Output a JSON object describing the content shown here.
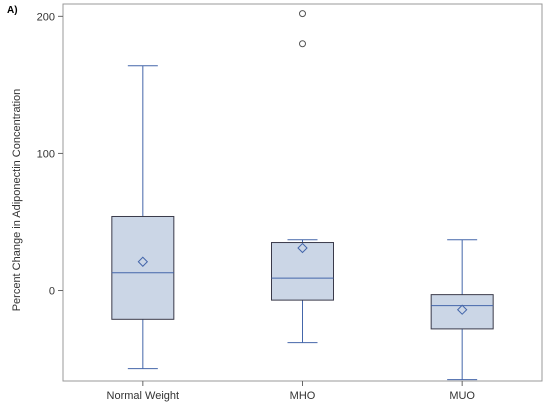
{
  "panel_label": "A)",
  "chart_data": {
    "type": "box",
    "title": "",
    "xlabel": "",
    "ylabel": "Percent Change in Adiponectin Concentration",
    "ylim": [
      -66,
      209
    ],
    "yticks": [
      0,
      100,
      200
    ],
    "grid": false,
    "legend": "none",
    "categories": [
      "Normal Weight",
      "MHO",
      "MUO"
    ],
    "boxes": [
      {
        "category": "Normal Weight",
        "whisker_low": -57,
        "q1": -21,
        "median": 13,
        "q3": 54,
        "whisker_high": 164,
        "mean": 21,
        "outliers": []
      },
      {
        "category": "MHO",
        "whisker_low": -38,
        "q1": -7,
        "median": 9,
        "q3": 35,
        "whisker_high": 37,
        "mean": 31,
        "outliers": [
          180,
          202
        ]
      },
      {
        "category": "MUO",
        "whisker_low": -65,
        "q1": -28,
        "median": -11,
        "q3": -3,
        "whisker_high": 37,
        "mean": -14,
        "outliers": []
      }
    ],
    "colors": {
      "box_fill": "#cbd6e6",
      "box_stroke": "#3a3a4a",
      "whisker": "#4466aa",
      "median": "#4466aa",
      "mean_marker": "#4466aa",
      "outlier": "#555555",
      "frame": "#999999"
    }
  }
}
